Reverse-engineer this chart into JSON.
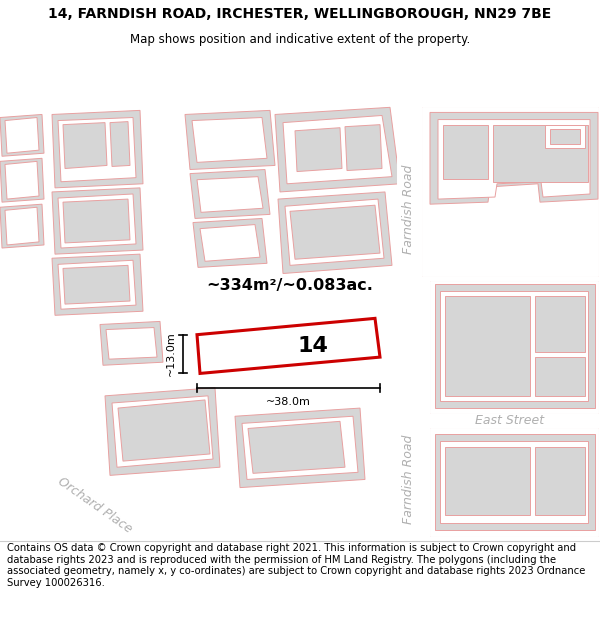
{
  "title": "14, FARNDISH ROAD, IRCHESTER, WELLINGBOROUGH, NN29 7BE",
  "subtitle": "Map shows position and indicative extent of the property.",
  "footer": "Contains OS data © Crown copyright and database right 2021. This information is subject to Crown copyright and database rights 2023 and is reproduced with the permission of HM Land Registry. The polygons (including the associated geometry, namely x, y co-ordinates) are subject to Crown copyright and database rights 2023 Ordnance Survey 100026316.",
  "map_bg": "#ffffff",
  "building_fill": "#d6d6d6",
  "building_edge": "#e8a0a0",
  "highlight_fill": "#ffffff",
  "highlight_edge": "#cc0000",
  "road_label_color": "#b0b0b0",
  "area_text": "~334m²/~0.083ac.",
  "number_label": "14",
  "dim_width": "~38.0m",
  "dim_height": "~13.0m",
  "title_fontsize": 10,
  "subtitle_fontsize": 8.5,
  "footer_fontsize": 7.2,
  "highlight_lw": 2.2,
  "building_lw": 0.7
}
